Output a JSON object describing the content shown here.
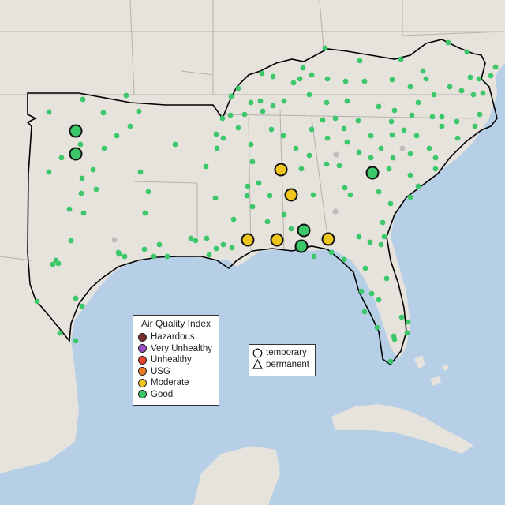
{
  "map": {
    "ocean_color": "#b7cfe6",
    "land_color": "#e6e2dc",
    "highlight_land_color": "#e8e5e0",
    "boundary_color": "#000000",
    "state_line_color": "#b0aaa4",
    "good_color": "#3cc76b",
    "moderate_color": "#f0c51c",
    "inactive_color": "#bdbdbd"
  },
  "aqi_legend": {
    "title": "Air Quality Index",
    "items": [
      {
        "label": "Hazardous",
        "color": "#7a2e2e"
      },
      {
        "label": "Very Unhealthy",
        "color": "#9b4fc2"
      },
      {
        "label": "Unhealthy",
        "color": "#e8442e"
      },
      {
        "label": "USG",
        "color": "#ec7b22"
      },
      {
        "label": "Moderate",
        "color": "#f0c51c"
      },
      {
        "label": "Good",
        "color": "#3cc76b"
      }
    ]
  },
  "type_legend": {
    "items": [
      {
        "label": "temporary",
        "icon": "circle-icon"
      },
      {
        "label": "permanent",
        "icon": "triangle-icon"
      }
    ]
  },
  "large_sites": [
    {
      "level": "Good"
    },
    {
      "level": "Good"
    },
    {
      "level": "Moderate"
    },
    {
      "level": "Moderate"
    },
    {
      "level": "Good"
    },
    {
      "level": "Moderate"
    },
    {
      "level": "Moderate"
    },
    {
      "level": "Good"
    },
    {
      "level": "Good"
    },
    {
      "level": "Moderate"
    }
  ]
}
